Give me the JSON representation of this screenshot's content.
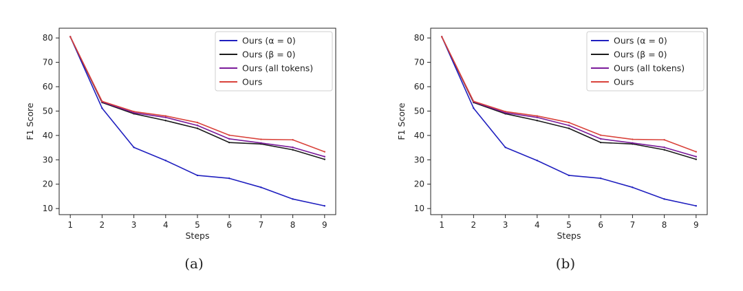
{
  "chart_data": [
    {
      "type": "line",
      "caption": "(a)",
      "xlabel": "Steps",
      "ylabel": "F1 Score",
      "x": [
        1,
        2,
        3,
        4,
        5,
        6,
        7,
        8,
        9
      ],
      "xticks": [
        "1",
        "2",
        "3",
        "4",
        "5",
        "6",
        "7",
        "8",
        "9"
      ],
      "yticks": [
        "10",
        "20",
        "30",
        "40",
        "50",
        "60",
        "70",
        "80"
      ],
      "ylim": [
        7.5,
        84
      ],
      "xlim": [
        0.65,
        9.35
      ],
      "legend_position": "top-right",
      "series": [
        {
          "name": "Ours (α = 0)",
          "color": "#1f1fbf",
          "values": [
            80.5,
            51.2,
            35.1,
            29.7,
            23.6,
            22.4,
            18.7,
            13.9,
            11.1
          ]
        },
        {
          "name": "Ours (β = 0)",
          "color": "#1a1a1a",
          "values": [
            80.5,
            53.5,
            48.9,
            46.1,
            42.9,
            37.1,
            36.5,
            34.1,
            30.2
          ]
        },
        {
          "name": "Ours (all tokens)",
          "color": "#7a1a9a",
          "values": [
            80.5,
            53.8,
            49.3,
            47.4,
            44.1,
            38.6,
            36.9,
            35.1,
            31.3
          ]
        },
        {
          "name": "Ours",
          "color": "#d9423a",
          "values": [
            80.5,
            54.0,
            49.8,
            48.0,
            45.3,
            40.1,
            38.4,
            38.2,
            33.3
          ]
        }
      ]
    },
    {
      "type": "line",
      "caption": "(b)",
      "xlabel": "Steps",
      "ylabel": "F1 Score",
      "x": [
        1,
        2,
        3,
        4,
        5,
        6,
        7,
        8,
        9
      ],
      "xticks": [
        "1",
        "2",
        "3",
        "4",
        "5",
        "6",
        "7",
        "8",
        "9"
      ],
      "yticks": [
        "10",
        "20",
        "30",
        "40",
        "50",
        "60",
        "70",
        "80"
      ],
      "ylim": [
        7.5,
        84
      ],
      "xlim": [
        0.65,
        9.35
      ],
      "legend_position": "top-right",
      "series": [
        {
          "name": "Ours (α = 0)",
          "color": "#1f1fbf",
          "values": [
            80.5,
            51.2,
            35.1,
            29.7,
            23.6,
            22.4,
            18.7,
            13.9,
            11.1
          ]
        },
        {
          "name": "Ours (β = 0)",
          "color": "#1a1a1a",
          "values": [
            80.5,
            53.5,
            48.9,
            46.1,
            42.9,
            37.1,
            36.5,
            34.1,
            30.2
          ]
        },
        {
          "name": "Ours (all tokens)",
          "color": "#7a1a9a",
          "values": [
            80.5,
            53.8,
            49.3,
            47.4,
            44.1,
            38.6,
            36.9,
            35.1,
            31.3
          ]
        },
        {
          "name": "Ours",
          "color": "#d9423a",
          "values": [
            80.5,
            54.0,
            49.8,
            48.0,
            45.3,
            40.1,
            38.4,
            38.2,
            33.3
          ]
        }
      ]
    }
  ]
}
